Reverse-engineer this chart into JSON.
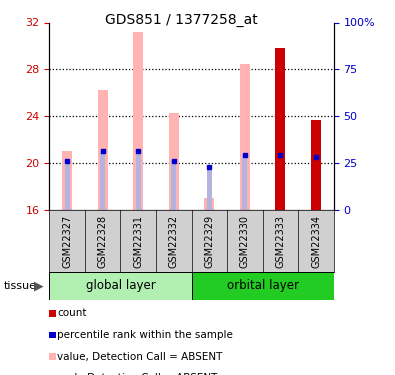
{
  "title": "GDS851 / 1377258_at",
  "samples": [
    "GSM22327",
    "GSM22328",
    "GSM22331",
    "GSM22332",
    "GSM22329",
    "GSM22330",
    "GSM22333",
    "GSM22334"
  ],
  "ylim_left": [
    16,
    32
  ],
  "ylim_right": [
    0,
    100
  ],
  "yticks_left": [
    16,
    20,
    24,
    28,
    32
  ],
  "yticks_right": [
    0,
    25,
    50,
    75,
    100
  ],
  "ytick_labels_right": [
    "0",
    "25",
    "50",
    "75",
    "100%"
  ],
  "absent_value_heights": [
    21.0,
    26.2,
    31.2,
    24.3,
    17.0,
    28.5,
    null,
    null
  ],
  "absent_rank_heights": [
    20.2,
    21.0,
    21.0,
    20.2,
    19.7,
    20.7,
    null,
    null
  ],
  "count_heights": [
    null,
    null,
    null,
    null,
    null,
    null,
    29.8,
    23.7
  ],
  "percentile_rank": [
    20.2,
    21.0,
    21.0,
    20.2,
    19.7,
    20.7,
    20.7,
    20.5
  ],
  "group_labels": [
    "global layer",
    "orbital layer"
  ],
  "group_split": 4,
  "global_color_light": "#b2f0b2",
  "global_color_dark": "#44dd44",
  "orbital_color": "#22cc22",
  "absent_value_color": "#ffb3b3",
  "absent_rank_color": "#b3b3dd",
  "count_color": "#cc0000",
  "percentile_color": "#0000cc",
  "tick_left_color": "#cc0000",
  "tick_right_color": "#0000cc",
  "plot_bg": "#ffffff",
  "xlabel_bg": "#d0d0d0",
  "legend_items": [
    {
      "color": "#cc0000",
      "label": "count"
    },
    {
      "color": "#0000cc",
      "label": "percentile rank within the sample"
    },
    {
      "color": "#ffb3b3",
      "label": "value, Detection Call = ABSENT"
    },
    {
      "color": "#b3b3dd",
      "label": "rank, Detection Call = ABSENT"
    }
  ]
}
